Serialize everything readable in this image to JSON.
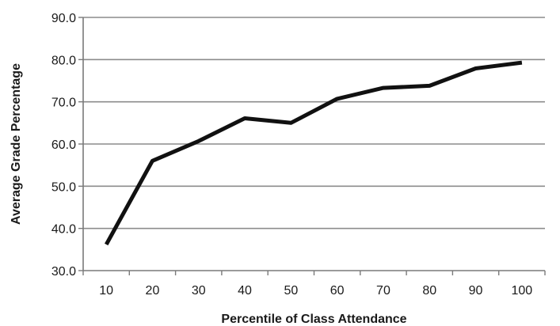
{
  "chart_data": {
    "type": "line",
    "title": "",
    "xlabel": "Percentile of Class Attendance",
    "ylabel": "Average Grade Percentage",
    "x": [
      10,
      20,
      30,
      40,
      50,
      60,
      70,
      80,
      90,
      100
    ],
    "x_tick_labels": [
      "10",
      "20",
      "30",
      "40",
      "50",
      "60",
      "70",
      "80",
      "90",
      "100"
    ],
    "y_ticks": [
      30,
      40,
      50,
      60,
      70,
      80,
      90
    ],
    "y_tick_labels": [
      "30.0",
      "40.0",
      "50.0",
      "60.0",
      "70.0",
      "80.0",
      "90.0"
    ],
    "ylim": [
      30,
      90
    ],
    "grid": "horizontal",
    "legend": "none",
    "series": [
      {
        "values": [
          36.2,
          56.0,
          60.7,
          66.1,
          65.0,
          70.7,
          73.3,
          73.8,
          77.9,
          79.3
        ],
        "color": "#111111"
      }
    ]
  }
}
